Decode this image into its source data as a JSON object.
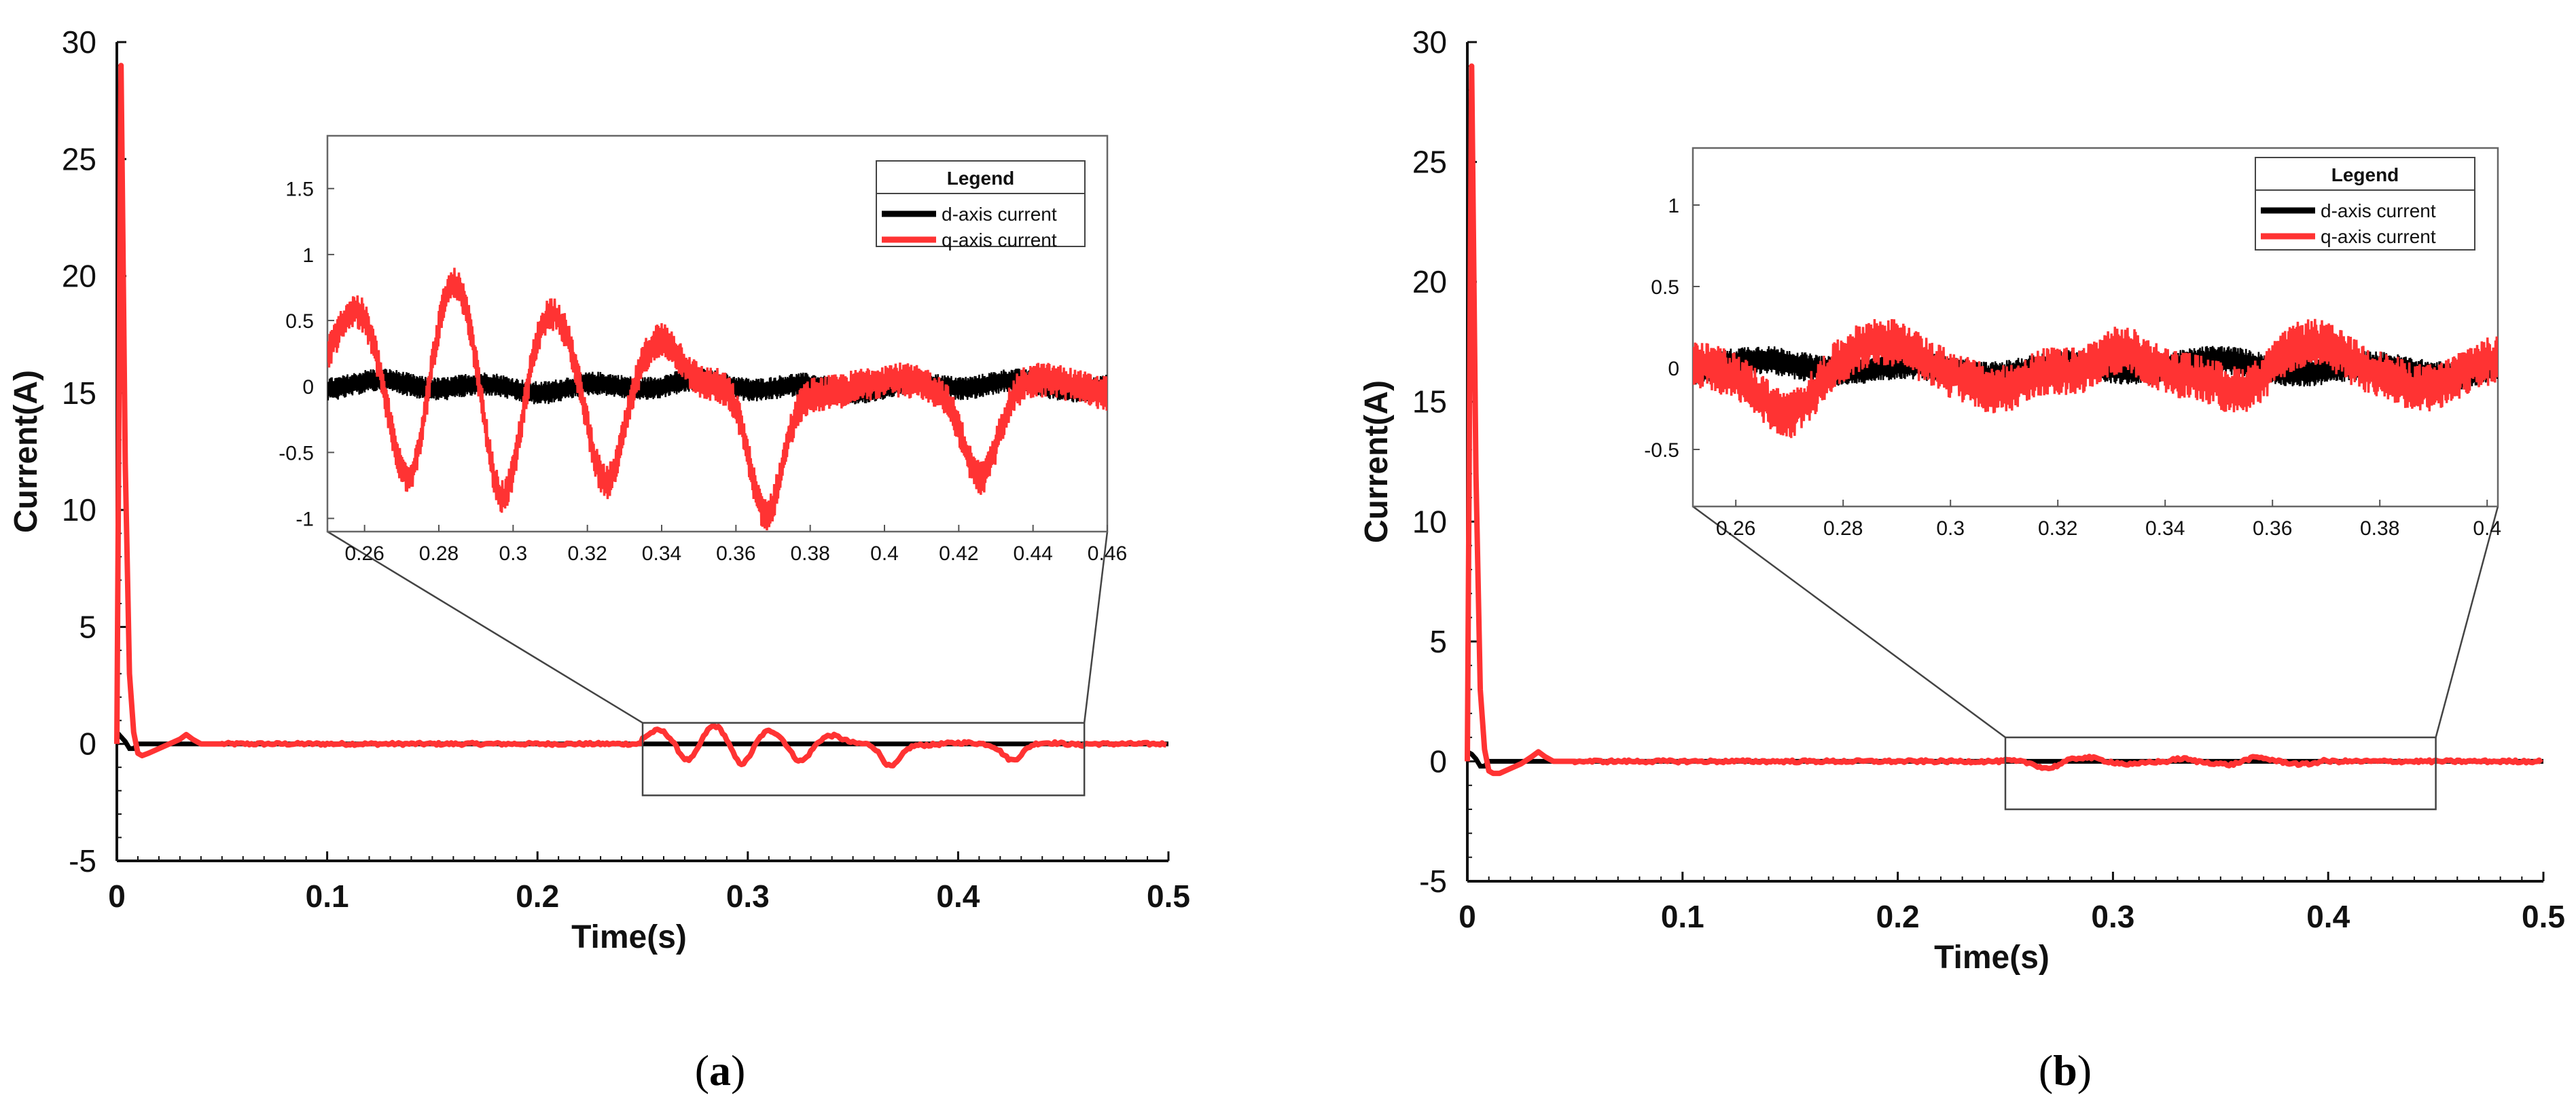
{
  "chart_data": [
    {
      "type": "line",
      "panel": "a",
      "caption_open": "(",
      "caption_letter": "a",
      "caption_close": ")",
      "xlabel": "Time(s)",
      "ylabel": "Current(A)",
      "xlim": [
        0,
        0.5
      ],
      "ylim": [
        -5,
        30
      ],
      "xticks": [
        "0",
        "0.1",
        "0.2",
        "0.3",
        "0.4",
        "0.5"
      ],
      "yticks": [
        "-5",
        "0",
        "5",
        "10",
        "15",
        "20",
        "25",
        "30"
      ],
      "series": [
        {
          "name": "d-axis current",
          "color": "#000000"
        },
        {
          "name": "q-axis current",
          "color": "#ff3333"
        }
      ],
      "d_axis": {
        "x": [
          0,
          0.002,
          0.004,
          0.006,
          0.008,
          0.01,
          0.015,
          0.02,
          0.5
        ],
        "y": [
          0.5,
          0.3,
          0.1,
          -0.2,
          -0.2,
          0.0,
          0.0,
          0.0,
          0.0
        ]
      },
      "q_axis": {
        "x": [
          0,
          0.002,
          0.004,
          0.006,
          0.008,
          0.01,
          0.012,
          0.015,
          0.02,
          0.025,
          0.03,
          0.033,
          0.036,
          0.04,
          0.045,
          0.05
        ],
        "y": [
          0,
          29,
          12,
          3,
          0.5,
          -0.4,
          -0.5,
          -0.4,
          -0.2,
          0.0,
          0.2,
          0.4,
          0.2,
          0.0,
          0.0,
          0.0
        ]
      },
      "oscillation": {
        "t_start": 0.25,
        "t_end": 0.46,
        "dips": [
          0.272,
          0.297,
          0.325,
          0.368,
          0.426
        ],
        "peaks": [
          0.258,
          0.284,
          0.31,
          0.34
        ],
        "dip_values": [
          -0.75,
          -0.9,
          -0.8,
          -1.0,
          -0.65
        ],
        "peak_values": [
          0.6,
          0.75,
          0.6,
          0.4
        ]
      },
      "zoom_box": {
        "x": [
          0.25,
          0.46
        ],
        "y": [
          -2.2,
          0.9
        ]
      },
      "inset": {
        "xlim": [
          0.25,
          0.46
        ],
        "ylim": [
          -1.1,
          1.9
        ],
        "xticks": [
          "0.26",
          "0.28",
          "0.3",
          "0.32",
          "0.34",
          "0.36",
          "0.38",
          "0.4",
          "0.42",
          "0.44",
          "0.46"
        ],
        "yticks": [
          "-1",
          "-0.5",
          "0",
          "0.5",
          "1",
          "1.5"
        ],
        "legend_title": "Legend"
      }
    },
    {
      "type": "line",
      "panel": "b",
      "caption_open": "(",
      "caption_letter": "b",
      "caption_close": ")",
      "xlabel": "Time(s)",
      "ylabel": "Current(A)",
      "xlim": [
        0,
        0.5
      ],
      "ylim": [
        -5,
        30
      ],
      "xticks": [
        "0",
        "0.1",
        "0.2",
        "0.3",
        "0.4",
        "0.5"
      ],
      "yticks": [
        "-5",
        "0",
        "5",
        "10",
        "15",
        "20",
        "25",
        "30"
      ],
      "series": [
        {
          "name": "d-axis current",
          "color": "#000000"
        },
        {
          "name": "q-axis current",
          "color": "#ff3333"
        }
      ],
      "d_axis": {
        "x": [
          0,
          0.002,
          0.004,
          0.006,
          0.008,
          0.01,
          0.015,
          0.02,
          0.5
        ],
        "y": [
          0.4,
          0.3,
          0.1,
          -0.2,
          -0.2,
          0.0,
          0.0,
          0.0,
          0.0
        ]
      },
      "q_axis": {
        "x": [
          0,
          0.002,
          0.004,
          0.006,
          0.008,
          0.01,
          0.012,
          0.015,
          0.02,
          0.025,
          0.03,
          0.033,
          0.036,
          0.04,
          0.045,
          0.05
        ],
        "y": [
          0,
          29,
          12,
          3,
          0.5,
          -0.4,
          -0.5,
          -0.5,
          -0.3,
          -0.1,
          0.2,
          0.4,
          0.2,
          0.0,
          0.0,
          0.0
        ]
      },
      "oscillation": {
        "t_start": 0.25,
        "t_end": 0.4,
        "dips": [
          0.27,
          0.31,
          0.325,
          0.355,
          0.39
        ],
        "peaks": [
          0.288,
          0.33,
          0.368
        ],
        "dip_values": [
          -0.25,
          -0.1,
          -0.15,
          -0.15,
          -0.1
        ],
        "peak_values": [
          0.12,
          0.15,
          0.12
        ]
      },
      "zoom_box": {
        "x": [
          0.25,
          0.45
        ],
        "y": [
          -2,
          1
        ]
      },
      "inset": {
        "xlim": [
          0.252,
          0.402
        ],
        "ylim": [
          -0.85,
          1.35
        ],
        "xticks": [
          "0.26",
          "0.28",
          "0.3",
          "0.32",
          "0.34",
          "0.36",
          "0.38",
          "0.4"
        ],
        "yticks": [
          "-0.5",
          "0",
          "0.5",
          "1"
        ],
        "legend_title": "Legend"
      }
    }
  ]
}
